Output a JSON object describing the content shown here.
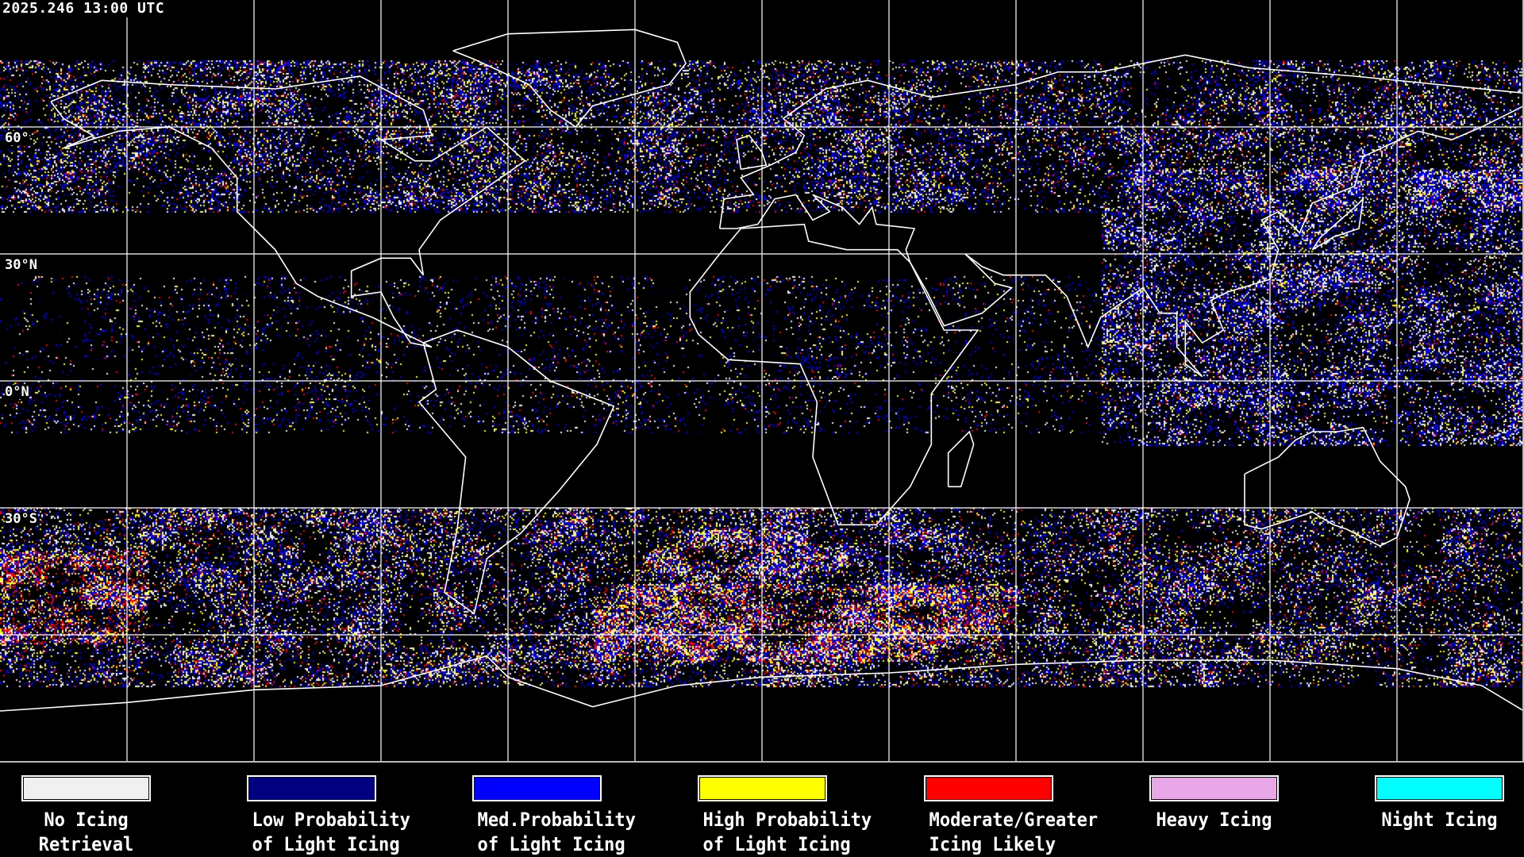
{
  "timestamp": "2025.246 13:00 UTC",
  "lat_labels": [
    "60°",
    "30°N",
    "0°N",
    "30°S"
  ],
  "grid": {
    "lon_step_deg": 30,
    "lat_step_deg": 30,
    "color": "#ffffff"
  },
  "coastline_color": "#ffffff",
  "background_color": "#000000",
  "legend": [
    {
      "line1": "No Icing",
      "line2": "Retrieval",
      "color": "#f0f0f0"
    },
    {
      "line1": "Low Probability",
      "line2": "of Light Icing",
      "color": "#000080"
    },
    {
      "line1": "Med.Probability",
      "line2": "of Light Icing",
      "color": "#0000ff"
    },
    {
      "line1": "High Probability",
      "line2": "of Light Icing",
      "color": "#ffff00"
    },
    {
      "line1": "Moderate/Greater",
      "line2": "Icing Likely",
      "color": "#ff0000"
    },
    {
      "line1": "Heavy Icing",
      "line2": "",
      "color": "#e8a8e8"
    },
    {
      "line1": "Night Icing",
      "line2": "",
      "color": "#00ffff"
    }
  ]
}
